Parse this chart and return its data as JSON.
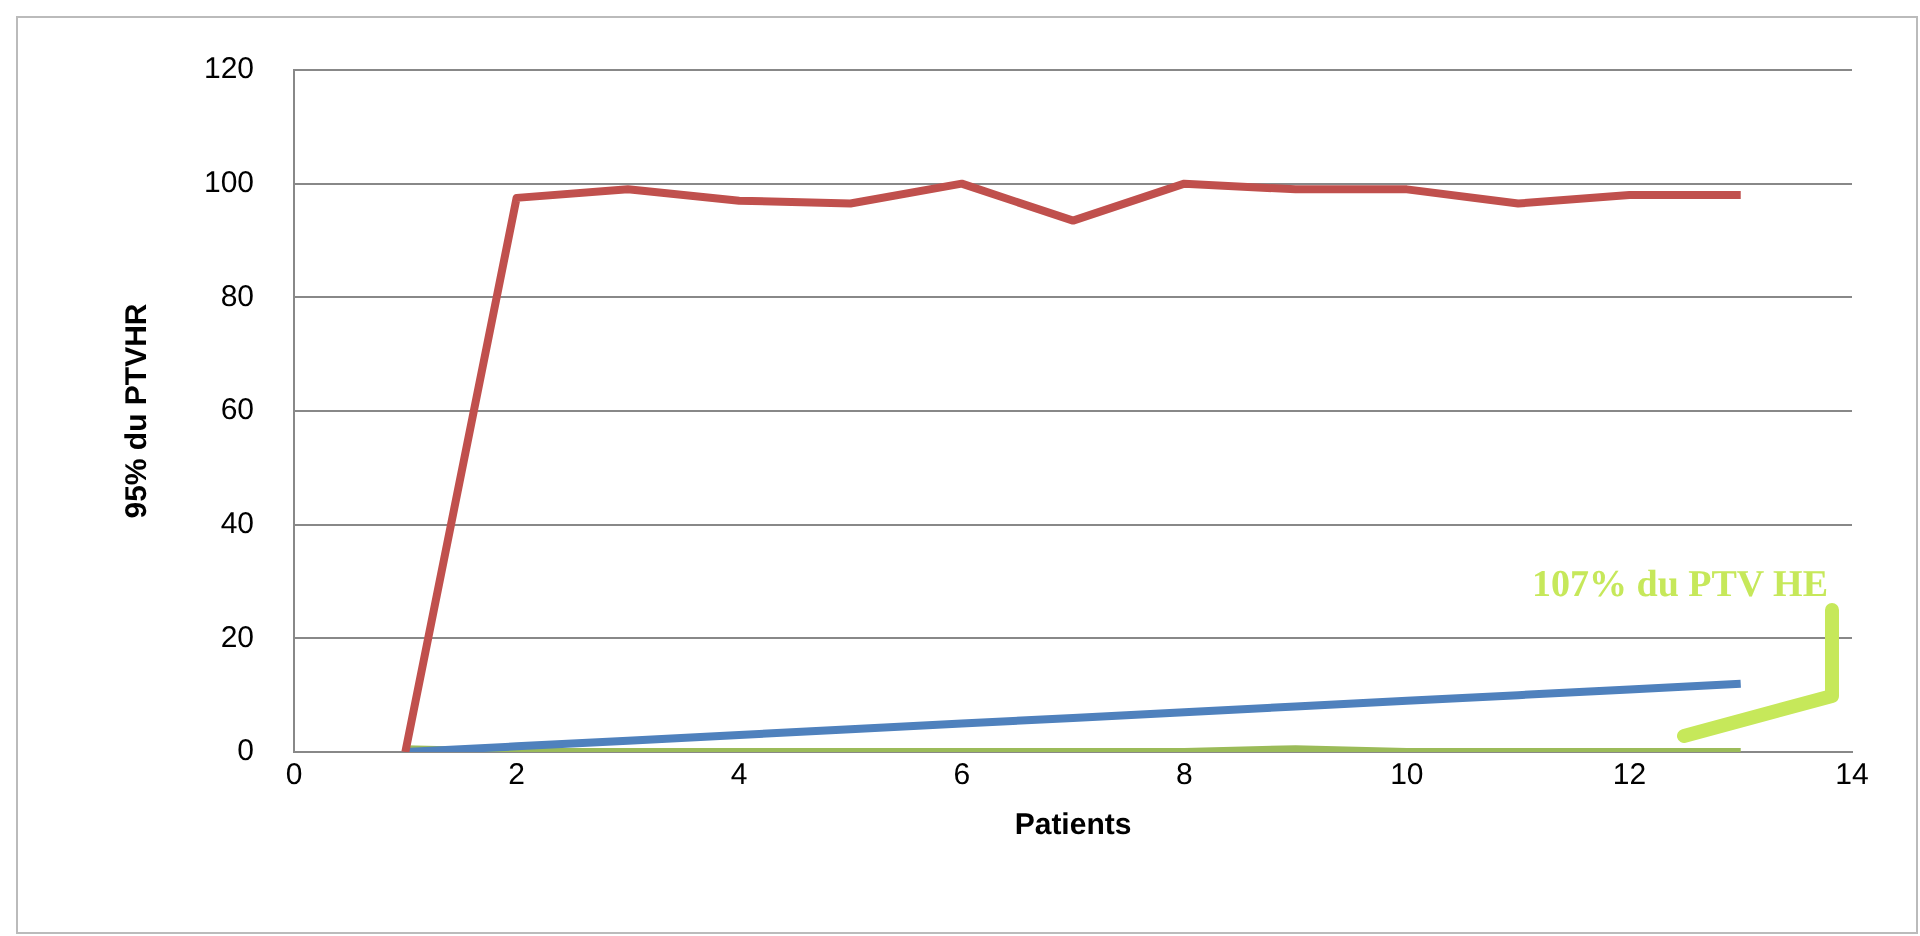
{
  "chart_data": {
    "type": "line",
    "xlabel": "Patients",
    "ylabel": "95% du PTVHR",
    "x": [
      1,
      2,
      3,
      4,
      5,
      6,
      7,
      8,
      9,
      10,
      11,
      12,
      13
    ],
    "series": [
      {
        "color": "#c0504d",
        "values": [
          0,
          97.5,
          99,
          97,
          96.5,
          100,
          93.5,
          100,
          99,
          99,
          96.5,
          98,
          98
        ]
      },
      {
        "color": "#4f81bd",
        "values": [
          0,
          1,
          2,
          3,
          4,
          5,
          6,
          7,
          8,
          9,
          10,
          11,
          12
        ]
      },
      {
        "color": "#9bbb59",
        "values": [
          0.5,
          0,
          0,
          0,
          0,
          0,
          0,
          0,
          0.5,
          0,
          0,
          0,
          0
        ]
      }
    ],
    "xlim": [
      0,
      14
    ],
    "xticks": [
      0,
      2,
      4,
      6,
      8,
      10,
      12,
      14
    ],
    "ylim": [
      0,
      120
    ],
    "yticks": [
      0,
      20,
      40,
      60,
      80,
      100,
      120
    ],
    "grid": "y",
    "legend": false,
    "marker": "none",
    "line_style": "solid",
    "annotations": [
      "107% du PTV HE"
    ]
  }
}
